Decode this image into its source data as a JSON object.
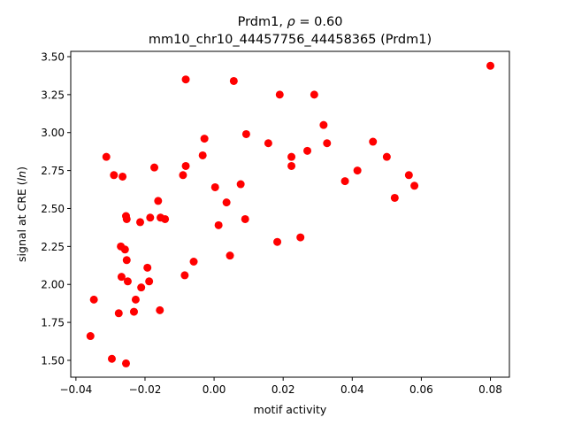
{
  "chart_data": {
    "type": "scatter",
    "title_line1_prefix": "Prdm1, ",
    "title_rho_symbol": "ρ",
    "title_rho_value": " = 0.60",
    "title_line2": "mm10_chr10_44457756_44458365 (Prdm1)",
    "xlabel": "motif activity",
    "ylabel_prefix": "signal at CRE (",
    "ylabel_italic": "ln",
    "ylabel_suffix": ")",
    "xlim": [
      -0.0415,
      0.0855
    ],
    "ylim": [
      1.389,
      3.535
    ],
    "xticks": [
      -0.04,
      -0.02,
      0.0,
      0.02,
      0.04,
      0.06,
      0.08
    ],
    "xtick_labels": [
      "−0.04",
      "−0.02",
      "0.00",
      "0.02",
      "0.04",
      "0.06",
      "0.08"
    ],
    "yticks": [
      1.5,
      1.75,
      2.0,
      2.25,
      2.5,
      2.75,
      3.0,
      3.25,
      3.5
    ],
    "ytick_labels": [
      "1.50",
      "1.75",
      "2.00",
      "2.25",
      "2.50",
      "2.75",
      "3.00",
      "3.25",
      "3.50"
    ],
    "grid": false,
    "marker_color": "#ff0000",
    "points": [
      [
        0.08,
        3.44
      ],
      [
        -0.0082,
        3.35
      ],
      [
        0.0057,
        3.34
      ],
      [
        0.019,
        3.25
      ],
      [
        0.029,
        3.25
      ],
      [
        0.0317,
        3.05
      ],
      [
        0.0093,
        2.99
      ],
      [
        -0.0028,
        2.96
      ],
      [
        0.0157,
        2.93
      ],
      [
        0.0327,
        2.93
      ],
      [
        0.046,
        2.94
      ],
      [
        -0.0312,
        2.84
      ],
      [
        -0.0033,
        2.85
      ],
      [
        0.027,
        2.88
      ],
      [
        0.0224,
        2.84
      ],
      [
        0.05,
        2.84
      ],
      [
        0.0224,
        2.78
      ],
      [
        -0.0082,
        2.78
      ],
      [
        -0.0173,
        2.77
      ],
      [
        0.0415,
        2.75
      ],
      [
        -0.029,
        2.72
      ],
      [
        -0.0265,
        2.71
      ],
      [
        -0.009,
        2.72
      ],
      [
        0.0564,
        2.72
      ],
      [
        0.0379,
        2.68
      ],
      [
        0.0077,
        2.66
      ],
      [
        0.058,
        2.65
      ],
      [
        0.0003,
        2.64
      ],
      [
        0.0523,
        2.57
      ],
      [
        -0.0162,
        2.55
      ],
      [
        0.0036,
        2.54
      ],
      [
        -0.0255,
        2.45
      ],
      [
        -0.0253,
        2.43
      ],
      [
        -0.0155,
        2.44
      ],
      [
        -0.0185,
        2.44
      ],
      [
        -0.0142,
        2.43
      ],
      [
        0.009,
        2.43
      ],
      [
        -0.0214,
        2.41
      ],
      [
        0.0013,
        2.39
      ],
      [
        -0.027,
        2.25
      ],
      [
        -0.0258,
        2.23
      ],
      [
        0.0183,
        2.28
      ],
      [
        0.025,
        2.31
      ],
      [
        -0.0253,
        2.16
      ],
      [
        -0.0059,
        2.15
      ],
      [
        0.0046,
        2.19
      ],
      [
        -0.0193,
        2.11
      ],
      [
        -0.0268,
        2.05
      ],
      [
        -0.0085,
        2.06
      ],
      [
        -0.025,
        2.02
      ],
      [
        -0.0188,
        2.02
      ],
      [
        -0.0211,
        1.98
      ],
      [
        -0.0348,
        1.9
      ],
      [
        -0.0227,
        1.9
      ],
      [
        -0.0276,
        1.81
      ],
      [
        -0.0232,
        1.82
      ],
      [
        -0.0157,
        1.83
      ],
      [
        -0.0358,
        1.66
      ],
      [
        -0.0296,
        1.51
      ],
      [
        -0.0255,
        1.48
      ]
    ]
  }
}
